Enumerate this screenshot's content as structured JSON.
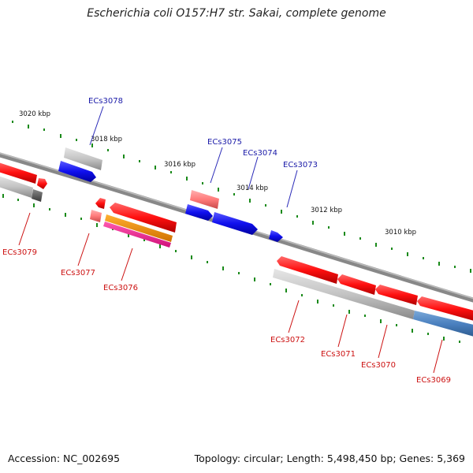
{
  "title": "Escherichia coli O157:H7 str. Sakai, complete genome",
  "footer": {
    "accession": "Accession: NC_002695",
    "topology": "Topology: circular; Length: 5,498,450 bp; Genes: 5,369"
  },
  "scale_labels": [
    "3020 kbp",
    "3018 kbp",
    "3016 kbp",
    "3014 kbp",
    "3012 kbp",
    "3010 kbp"
  ],
  "gene_labels": {
    "top": [
      "ECs3078",
      "ECs3075",
      "ECs3074",
      "ECs3073"
    ],
    "bottom": [
      "ECs3079",
      "ECs3077",
      "ECs3076",
      "ECs3072",
      "ECs3071",
      "ECs3070",
      "ECs3069"
    ]
  },
  "colors": {
    "forward_cds": "#1010e0",
    "reverse_cds": "#e01010",
    "top_label": "#1a1aa8",
    "bottom_label": "#cc1111",
    "backbone": "#777777",
    "scale_tick": "#1a8a1a"
  }
}
